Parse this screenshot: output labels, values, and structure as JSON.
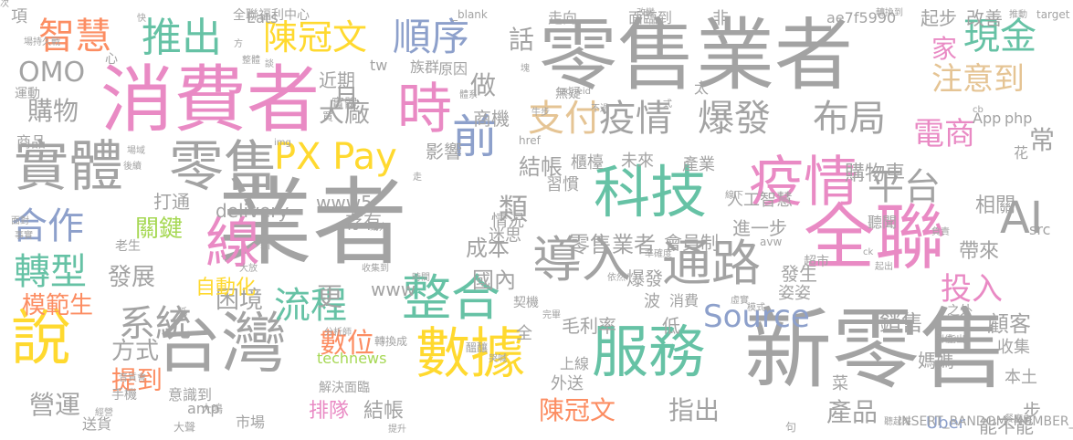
{
  "palette": {
    "gray": "#a3a3a3",
    "pink": "#e98ac4",
    "green": "#66c2a5",
    "yellow": "#ffd92f",
    "orange": "#fc8d62",
    "blue": "#8da0cb",
    "lime": "#a6d854",
    "tan": "#e5c494"
  },
  "words": [
    {
      "text": "零售業者",
      "color": "#a3a3a3"
    },
    {
      "text": "業者",
      "color": "#a3a3a3"
    },
    {
      "text": "新零售",
      "color": "#a3a3a3"
    },
    {
      "text": "消費者",
      "color": "#e98ac4"
    },
    {
      "text": "全聯",
      "color": "#e98ac4"
    },
    {
      "text": "台灣",
      "color": "#a3a3a3"
    },
    {
      "text": "實體",
      "color": "#a3a3a3"
    },
    {
      "text": "零售",
      "color": "#a3a3a3"
    },
    {
      "text": "服務",
      "color": "#66c2a5"
    },
    {
      "text": "數據",
      "color": "#ffd92f"
    },
    {
      "text": "科技",
      "color": "#66c2a5"
    },
    {
      "text": "疫情",
      "color": "#e98ac4"
    },
    {
      "text": "線",
      "color": "#e98ac4"
    },
    {
      "text": "說",
      "color": "#ffd92f"
    },
    {
      "text": "時",
      "color": "#e98ac4"
    },
    {
      "text": "整合",
      "color": "#66c2a5"
    },
    {
      "text": "導入",
      "color": "#a3a3a3"
    },
    {
      "text": "通路",
      "color": "#a3a3a3"
    },
    {
      "text": "前",
      "color": "#8da0cb"
    },
    {
      "text": "推出",
      "color": "#66c2a5"
    },
    {
      "text": "順序",
      "color": "#8da0cb"
    },
    {
      "text": "智慧",
      "color": "#fc8d62"
    },
    {
      "text": "陳冠文",
      "color": "#ffd92f"
    },
    {
      "text": "PX Pay",
      "color": "#ffd92f"
    },
    {
      "text": "支付",
      "color": "#e5c494"
    },
    {
      "text": "疫情",
      "color": "#a3a3a3"
    },
    {
      "text": "爆發",
      "color": "#a3a3a3"
    },
    {
      "text": "布局",
      "color": "#a3a3a3"
    },
    {
      "text": "AI",
      "color": "#a3a3a3"
    },
    {
      "text": "平台",
      "color": "#a3a3a3"
    },
    {
      "text": "合作",
      "color": "#8da0cb"
    },
    {
      "text": "轉型",
      "color": "#66c2a5"
    },
    {
      "text": "系統",
      "color": "#a3a3a3"
    },
    {
      "text": "流程",
      "color": "#66c2a5"
    },
    {
      "text": "Source",
      "color": "#8da0cb"
    },
    {
      "text": "投入",
      "color": "#e98ac4"
    },
    {
      "text": "家",
      "color": "#e98ac4"
    },
    {
      "text": "現金",
      "color": "#66c2a5"
    },
    {
      "text": "注意到",
      "color": "#e5c494"
    },
    {
      "text": "電商",
      "color": "#e98ac4"
    },
    {
      "text": "常",
      "color": "#a3a3a3"
    },
    {
      "text": "OMO",
      "color": "#a3a3a3"
    },
    {
      "text": "購物",
      "color": "#a3a3a3"
    },
    {
      "text": "大廠",
      "color": "#a3a3a3"
    },
    {
      "text": "月",
      "color": "#a3a3a3"
    },
    {
      "text": "做",
      "color": "#a3a3a3"
    },
    {
      "text": "話",
      "color": "#a3a3a3"
    },
    {
      "text": "類",
      "color": "#a3a3a3"
    },
    {
      "text": "結帳",
      "color": "#a3a3a3"
    },
    {
      "text": "成本",
      "color": "#a3a3a3"
    },
    {
      "text": "國內",
      "color": "#a3a3a3"
    },
    {
      "text": "零售業者",
      "color": "#a3a3a3"
    },
    {
      "text": "數位",
      "color": "#fc8d62"
    },
    {
      "text": "更",
      "color": "#a3a3a3"
    },
    {
      "text": "陳冠文",
      "color": "#fc8d62"
    },
    {
      "text": "指出",
      "color": "#a3a3a3"
    },
    {
      "text": "營運",
      "color": "#a3a3a3"
    },
    {
      "text": "提到",
      "color": "#fc8d62"
    },
    {
      "text": "方式",
      "color": "#a3a3a3"
    },
    {
      "text": "模範生",
      "color": "#fc8d62"
    },
    {
      "text": "發展",
      "color": "#a3a3a3"
    },
    {
      "text": "困境",
      "color": "#a3a3a3"
    },
    {
      "text": "自動化",
      "color": "#ffd92f"
    },
    {
      "text": "關鍵",
      "color": "#a6d854"
    },
    {
      "text": "產品",
      "color": "#a3a3a3"
    },
    {
      "text": "顧客",
      "color": "#a3a3a3"
    },
    {
      "text": "銷售",
      "color": "#a3a3a3"
    },
    {
      "text": "排隊",
      "color": "#e98ac4"
    },
    {
      "text": "結帳",
      "color": "#a3a3a3"
    },
    {
      "text": "購物車",
      "color": "#a3a3a3"
    },
    {
      "text": "相關",
      "color": "#a3a3a3"
    },
    {
      "text": "帶來",
      "color": "#a3a3a3"
    },
    {
      "text": "毛利率",
      "color": "#a3a3a3"
    },
    {
      "text": "低",
      "color": "#a3a3a3"
    },
    {
      "text": "進一步",
      "color": "#a3a3a3"
    },
    {
      "text": "會員制",
      "color": "#a3a3a3"
    },
    {
      "text": "www5",
      "color": "#a3a3a3"
    },
    {
      "text": "存有",
      "color": "#a3a3a3"
    },
    {
      "text": "delivery",
      "color": "#a3a3a3"
    },
    {
      "text": "打通",
      "color": "#a3a3a3"
    },
    {
      "text": "影響",
      "color": "#a3a3a3"
    },
    {
      "text": "商機",
      "color": "#a3a3a3"
    },
    {
      "text": "櫃檯",
      "color": "#a3a3a3"
    },
    {
      "text": "未來",
      "color": "#a3a3a3"
    },
    {
      "text": "產業",
      "color": "#a3a3a3"
    },
    {
      "text": "習慣",
      "color": "#a3a3a3"
    },
    {
      "text": "情況",
      "color": "#a3a3a3"
    },
    {
      "text": "迷思",
      "color": "#a3a3a3"
    },
    {
      "text": "www",
      "color": "#a3a3a3"
    },
    {
      "text": "爆發",
      "color": "#a3a3a3"
    },
    {
      "text": "發生",
      "color": "#a3a3a3"
    },
    {
      "text": "波",
      "color": "#a3a3a3"
    },
    {
      "text": "消費",
      "color": "#a3a3a3"
    },
    {
      "text": "姿姿",
      "color": "#a3a3a3"
    },
    {
      "text": "超市",
      "color": "#a3a3a3"
    },
    {
      "text": "聽聞",
      "color": "#a3a3a3"
    },
    {
      "text": "之外",
      "color": "#a3a3a3"
    },
    {
      "text": "收集",
      "color": "#a3a3a3"
    },
    {
      "text": "本土",
      "color": "#a3a3a3"
    },
    {
      "text": "媽媽",
      "color": "#a3a3a3"
    },
    {
      "text": "步",
      "color": "#a3a3a3"
    },
    {
      "text": "能不能",
      "color": "#a3a3a3"
    },
    {
      "text": "Uber",
      "color": "#8da0cb"
    },
    {
      "text": "technews",
      "color": "#a6d854"
    },
    {
      "text": "外送",
      "color": "#a3a3a3"
    },
    {
      "text": "上線",
      "color": "#a3a3a3"
    },
    {
      "text": "菜",
      "color": "#a3a3a3"
    },
    {
      "text": "全",
      "color": "#a3a3a3"
    },
    {
      "text": "amp",
      "color": "#a3a3a3"
    },
    {
      "text": "市場",
      "color": "#a3a3a3"
    },
    {
      "text": "送貨",
      "color": "#a3a3a3"
    },
    {
      "text": "意識到",
      "color": "#a3a3a3"
    },
    {
      "text": "手機",
      "color": "#a3a3a3"
    },
    {
      "text": "解決",
      "color": "#a3a3a3"
    },
    {
      "text": "面臨",
      "color": "#a3a3a3"
    },
    {
      "text": "近期",
      "color": "#a3a3a3"
    },
    {
      "text": "tw",
      "color": "#a3a3a3"
    },
    {
      "text": "族群",
      "color": "#a3a3a3"
    },
    {
      "text": "原因",
      "color": "#a3a3a3"
    },
    {
      "text": "php",
      "color": "#a3a3a3"
    },
    {
      "text": "App",
      "color": "#a3a3a3"
    },
    {
      "text": "太",
      "color": "#a3a3a3"
    },
    {
      "text": "起步",
      "color": "#a3a3a3"
    },
    {
      "text": "改善",
      "color": "#a3a3a3"
    },
    {
      "text": "ae7f5990",
      "color": "#a3a3a3"
    },
    {
      "text": "非",
      "color": "#a3a3a3"
    },
    {
      "text": "走向",
      "color": "#a3a3a3"
    },
    {
      "text": "面臨到",
      "color": "#a3a3a3"
    },
    {
      "text": "Eats",
      "color": "#a3a3a3"
    },
    {
      "text": "全聯福利中心",
      "color": "#a3a3a3"
    },
    {
      "text": "項",
      "color": "#a3a3a3"
    },
    {
      "text": "心",
      "color": "#a3a3a3"
    },
    {
      "text": "商品",
      "color": "#a3a3a3"
    },
    {
      "text": "人工智慧",
      "color": "#a3a3a3"
    },
    {
      "text": "新",
      "color": "#a3a3a3"
    },
    {
      "text": "大聲",
      "color": "#a3a3a3"
    },
    {
      "text": "實體",
      "color": "#a3a3a3"
    },
    {
      "text": "無疑",
      "color": "#a3a3a3"
    },
    {
      "text": "買",
      "color": "#a3a3a3"
    },
    {
      "text": "href",
      "color": "#a3a3a3"
    },
    {
      "text": "src",
      "color": "#a3a3a3"
    },
    {
      "text": "提升",
      "color": "#a3a3a3"
    },
    {
      "text": "INSERT_RANDOM_NUMBER_HERE",
      "color": "#a3a3a3"
    },
    {
      "text": "句",
      "color": "#a3a3a3"
    },
    {
      "text": "運動",
      "color": "#a3a3a3"
    },
    {
      "text": "契機",
      "color": "#a3a3a3"
    },
    {
      "text": "塊",
      "color": "#a3a3a3"
    },
    {
      "text": "_blank",
      "color": "#a3a3a3"
    },
    {
      "text": "cb",
      "color": "#a3a3a3"
    },
    {
      "text": "target",
      "color": "#a3a3a3"
    },
    {
      "text": "推動",
      "color": "#a3a3a3"
    },
    {
      "text": "轉換到",
      "color": "#a3a3a3"
    },
    {
      "text": "改變",
      "color": "#a3a3a3"
    },
    {
      "text": "場持久戰",
      "color": "#a3a3a3"
    },
    {
      "text": "快",
      "color": "#a3a3a3"
    },
    {
      "text": "整體",
      "color": "#a3a3a3"
    },
    {
      "text": "談",
      "color": "#a3a3a3"
    },
    {
      "text": "方",
      "color": "#a3a3a3"
    },
    {
      "text": "不過",
      "color": "#a3a3a3"
    },
    {
      "text": "zoneid",
      "color": "#a3a3a3"
    },
    {
      "text": "式",
      "color": "#a3a3a3"
    },
    {
      "text": "avw",
      "color": "#a3a3a3"
    },
    {
      "text": "ck",
      "color": "#a3a3a3"
    },
    {
      "text": "img",
      "color": "#a3a3a3"
    },
    {
      "text": "面對",
      "color": "#a3a3a3"
    },
    {
      "text": "事實",
      "color": "#a3a3a3"
    },
    {
      "text": "老生",
      "color": "#a3a3a3"
    },
    {
      "text": "大放",
      "color": "#a3a3a3"
    },
    {
      "text": "分析師",
      "color": "#a3a3a3"
    },
    {
      "text": "醞釀",
      "color": "#a3a3a3"
    },
    {
      "text": "大鳴",
      "color": "#a3a3a3"
    },
    {
      "text": "經營",
      "color": "#a3a3a3"
    },
    {
      "text": "轉換成",
      "color": "#a3a3a3"
    },
    {
      "text": "哭喊",
      "color": "#a3a3a3"
    },
    {
      "text": "虛實",
      "color": "#a3a3a3"
    },
    {
      "text": "模式",
      "color": "#a3a3a3"
    },
    {
      "text": "起出",
      "color": "#a3a3a3"
    },
    {
      "text": "負責",
      "color": "#a3a3a3"
    },
    {
      "text": "指出",
      "color": "#a3a3a3"
    },
    {
      "text": "到位",
      "color": "#a3a3a3"
    },
    {
      "text": "餐廳主",
      "color": "#a3a3a3"
    },
    {
      "text": "聽起來",
      "color": "#a3a3a3"
    },
    {
      "text": "依然",
      "color": "#a3a3a3"
    },
    {
      "text": "時間",
      "color": "#a3a3a3"
    },
    {
      "text": "完畢",
      "color": "#a3a3a3"
    },
    {
      "text": "動力",
      "color": "#a3a3a3"
    },
    {
      "text": "收集到",
      "color": "#a3a3a3"
    },
    {
      "text": "低",
      "color": "#a3a3a3"
    },
    {
      "text": "場域",
      "color": "#a3a3a3"
    },
    {
      "text": "後續",
      "color": "#a3a3a3"
    },
    {
      "text": "體系",
      "color": "#a3a3a3"
    },
    {
      "text": "牛步",
      "color": "#a3a3a3"
    },
    {
      "text": "準確度",
      "color": "#a3a3a3"
    },
    {
      "text": "線下",
      "color": "#a3a3a3"
    },
    {
      "text": "花",
      "color": "#a3a3a3"
    },
    {
      "text": "走",
      "color": "#a3a3a3"
    },
    {
      "text": "音質會",
      "color": "#a3a3a3"
    },
    {
      "text": "次",
      "color": "#a3a3a3"
    }
  ]
}
